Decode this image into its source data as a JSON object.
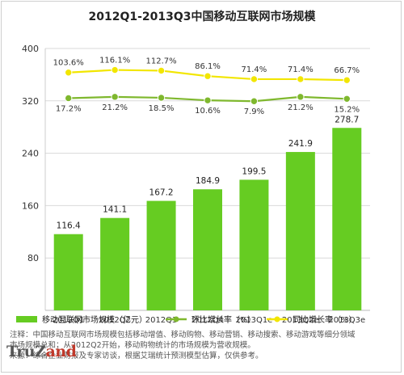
{
  "chart_data": {
    "type": "bar",
    "title": "2012Q1-2013Q3中国移动互联网市场规模",
    "categories": [
      "2012Q1",
      "2012Q2",
      "2012Q3",
      "2012Q4",
      "2013Q1e",
      "2013Q2e",
      "2013Q3e"
    ],
    "ylim": [
      0,
      400
    ],
    "yticks": [
      80,
      160,
      240,
      320,
      400
    ],
    "grid": true,
    "legend_position": "bottom",
    "series": [
      {
        "name": "移动互联网市场规模（亿元）",
        "kind": "bar",
        "color": "#66cc22",
        "values": [
          116.4,
          141.1,
          167.2,
          184.9,
          199.5,
          241.9,
          278.7
        ],
        "labels": [
          "116.4",
          "141.1",
          "167.2",
          "184.9",
          "199.5",
          "241.9",
          "278.7"
        ]
      },
      {
        "name": "环比增长率（%）",
        "kind": "line",
        "color": "#7fb82e",
        "plot_positions": [
          17.2,
          21.2,
          18.5,
          10.6,
          7.9,
          21.2,
          15.2
        ],
        "labels": [
          "17.2%",
          "21.2%",
          "18.5%",
          "10.6%",
          "7.9%",
          "21.2%",
          "15.2%"
        ]
      },
      {
        "name": "同比增长率（%）",
        "kind": "line",
        "color": "#f2e600",
        "plot_positions": [
          103.6,
          116.1,
          112.7,
          86.1,
          71.4,
          71.4,
          66.7
        ],
        "labels": [
          "103.6%",
          "116.1%",
          "112.7%",
          "86.1%",
          "71.4%",
          "71.4%",
          "66.7%"
        ]
      }
    ]
  },
  "notes": [
    "注释：中国移动互联网市场规模包括移动增值、移动购物、移动营销、移动搜索、移动游戏等细分领域",
    "市场规模总和；从2012Q2开始，移动购物统计的市场规模为营收规模。",
    "来源：综合企业财报及专家访谈，根据艾瑞统计预测模型估算，仅供参考。"
  ],
  "logo": {
    "text_main": "TruZ",
    "text_rest": "and"
  }
}
